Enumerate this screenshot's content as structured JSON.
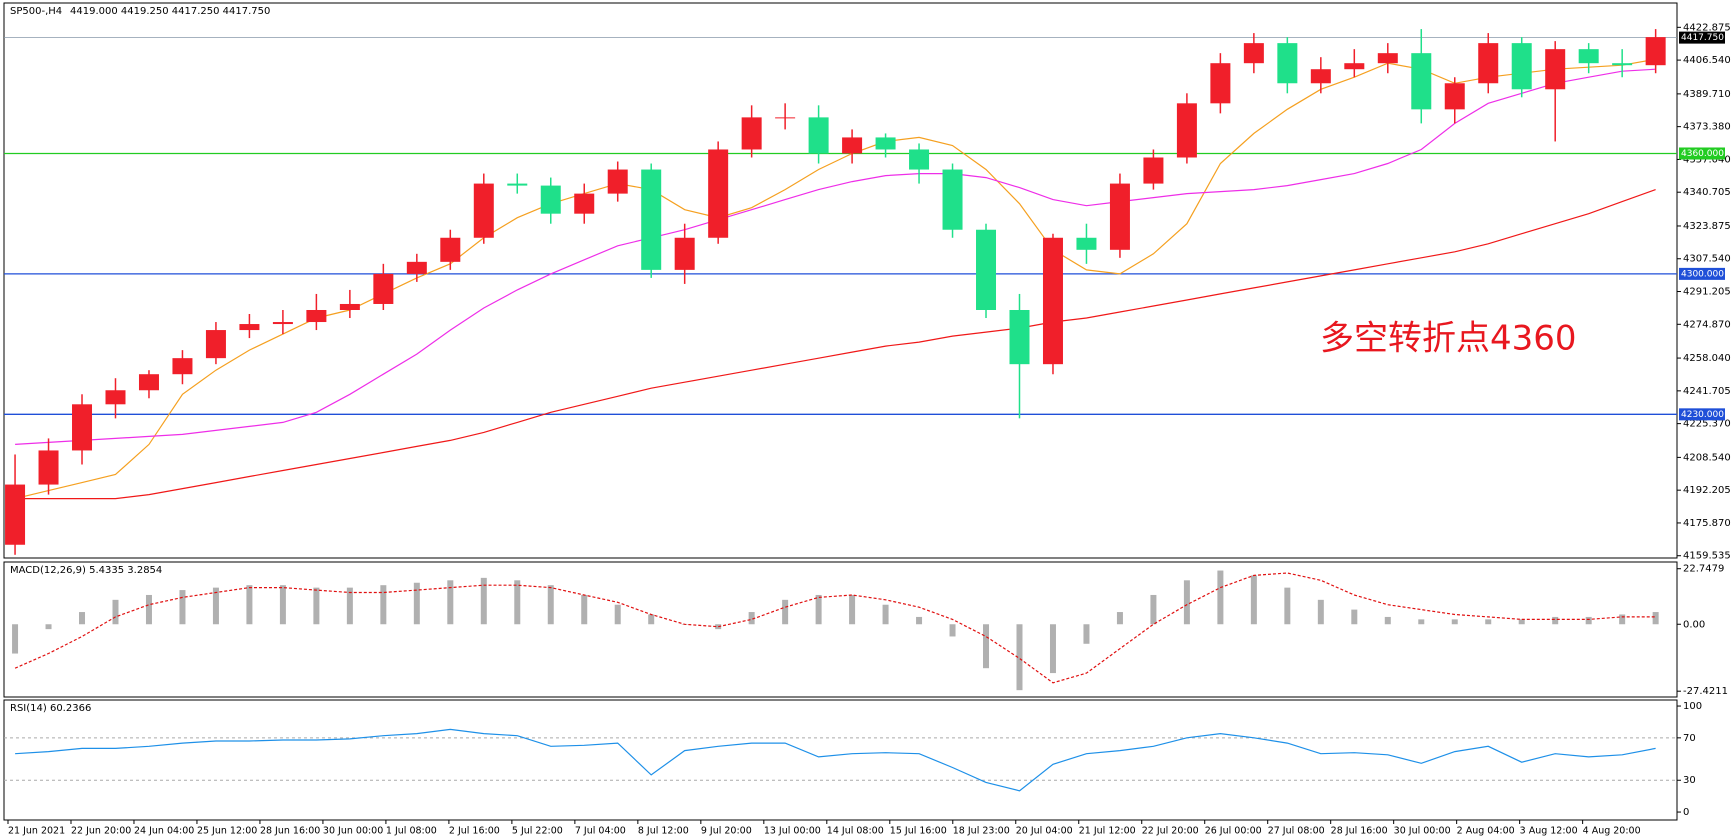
{
  "chart_data": [
    {
      "type": "candlestick",
      "title": "SP500-,H4",
      "subtitle": "4419.000 4419.250 4417.250 4417.750",
      "up_color": "#f01f2a",
      "down_color": "#1fe08a",
      "open": [
        4165,
        4195,
        4212,
        4235,
        4242,
        4250,
        4258,
        4272,
        4275,
        4276,
        4282,
        4285,
        4300,
        4306,
        4318,
        4345,
        4344,
        4330,
        4340,
        4352,
        4302,
        4318,
        4362,
        4378,
        4378,
        4360,
        4368,
        4362,
        4352,
        4322,
        4282,
        4255,
        4318,
        4312,
        4345,
        4358,
        4385,
        4405,
        4415,
        4395,
        4402,
        4405,
        4410,
        4382,
        4395,
        4415,
        4392,
        4412,
        4405,
        4404
      ],
      "high": [
        4210,
        4218,
        4240,
        4248,
        4252,
        4262,
        4276,
        4280,
        4282,
        4290,
        4292,
        4305,
        4310,
        4322,
        4350,
        4350,
        4348,
        4345,
        4356,
        4355,
        4325,
        4366,
        4384,
        4385,
        4384,
        4372,
        4370,
        4365,
        4355,
        4325,
        4290,
        4320,
        4325,
        4350,
        4362,
        4390,
        4410,
        4420,
        4418,
        4408,
        4412,
        4415,
        4422,
        4398,
        4420,
        4418,
        4416,
        4415,
        4412,
        4422
      ],
      "low": [
        4160,
        4190,
        4205,
        4228,
        4238,
        4245,
        4255,
        4268,
        4270,
        4272,
        4278,
        4282,
        4296,
        4302,
        4315,
        4340,
        4325,
        4325,
        4336,
        4298,
        4295,
        4315,
        4358,
        4372,
        4355,
        4355,
        4358,
        4345,
        4318,
        4278,
        4228,
        4250,
        4305,
        4308,
        4342,
        4355,
        4380,
        4400,
        4390,
        4390,
        4398,
        4400,
        4375,
        4375,
        4390,
        4388,
        4366,
        4400,
        4398,
        4400
      ],
      "close": [
        4195,
        4212,
        4235,
        4242,
        4250,
        4258,
        4272,
        4275,
        4276,
        4282,
        4285,
        4300,
        4306,
        4318,
        4345,
        4344,
        4330,
        4340,
        4352,
        4302,
        4318,
        4362,
        4378,
        4378,
        4360,
        4368,
        4362,
        4352,
        4322,
        4282,
        4255,
        4318,
        4312,
        4345,
        4358,
        4385,
        4405,
        4415,
        4395,
        4402,
        4405,
        4410,
        4382,
        4395,
        4415,
        4392,
        4412,
        4405,
        4404,
        4418
      ],
      "lines": [
        {
          "color": "#f5a020",
          "values": [
            4188,
            4192,
            4196,
            4200,
            4215,
            4240,
            4252,
            4262,
            4270,
            4278,
            4282,
            4290,
            4298,
            4305,
            4318,
            4328,
            4335,
            4340,
            4345,
            4342,
            4332,
            4328,
            4333,
            4342,
            4352,
            4360,
            4366,
            4368,
            4364,
            4352,
            4335,
            4312,
            4302,
            4300,
            4310,
            4325,
            4355,
            4370,
            4382,
            4392,
            4398,
            4405,
            4402,
            4395,
            4398,
            4400,
            4402,
            4403,
            4404,
            4407
          ]
        },
        {
          "color": "#ee2ee8",
          "values": [
            4215,
            4216,
            4217,
            4218,
            4219,
            4220,
            4222,
            4224,
            4226,
            4231,
            4240,
            4250,
            4260,
            4272,
            4283,
            4292,
            4300,
            4307,
            4314,
            4318,
            4322,
            4327,
            4332,
            4337,
            4342,
            4346,
            4349,
            4350,
            4350,
            4348,
            4343,
            4337,
            4334,
            4336,
            4338,
            4340,
            4341,
            4342,
            4344,
            4347,
            4350,
            4355,
            4362,
            4375,
            4385,
            4390,
            4395,
            4398,
            4401,
            4402
          ]
        },
        {
          "color": "#f01818",
          "values": [
            4188,
            4188,
            4188,
            4188,
            4190,
            4193,
            4196,
            4199,
            4202,
            4205,
            4208,
            4211,
            4214,
            4217,
            4221,
            4226,
            4231,
            4235,
            4239,
            4243,
            4246,
            4249,
            4252,
            4255,
            4258,
            4261,
            4264,
            4266,
            4269,
            4271,
            4273,
            4276,
            4278,
            4281,
            4284,
            4287,
            4290,
            4293,
            4296,
            4299,
            4302,
            4305,
            4308,
            4311,
            4315,
            4320,
            4325,
            4330,
            4336,
            4342
          ]
        }
      ],
      "ylim": [
        4158.4,
        4435
      ],
      "yticks": [
        {
          "value": 4422.875,
          "label": "4422.875"
        },
        {
          "value": 4406.54,
          "label": "4406.540"
        },
        {
          "value": 4389.71,
          "label": "4389.710"
        },
        {
          "value": 4373.38,
          "label": "4373.380"
        },
        {
          "value": 4357.04,
          "label": "4357.040"
        },
        {
          "value": 4340.705,
          "label": "4340.705"
        },
        {
          "value": 4323.875,
          "label": "4323.875"
        },
        {
          "value": 4307.54,
          "label": "4307.540"
        },
        {
          "value": 4291.205,
          "label": "4291.205"
        },
        {
          "value": 4274.87,
          "label": "4274.870"
        },
        {
          "value": 4258.04,
          "label": "4258.040"
        },
        {
          "value": 4241.705,
          "label": "4241.705"
        },
        {
          "value": 4225.37,
          "label": "4225.370"
        },
        {
          "value": 4208.54,
          "label": "4208.540"
        },
        {
          "value": 4192.205,
          "label": "4192.205"
        },
        {
          "value": 4175.87,
          "label": "4175.870"
        },
        {
          "value": 4159.535,
          "label": "4159.535"
        }
      ],
      "hlines": [
        {
          "value": 4360,
          "label": "4360.000",
          "color": "#22cc22"
        },
        {
          "value": 4300,
          "label": "4300.000",
          "color": "#1f4fd8"
        },
        {
          "value": 4230,
          "label": "4230.000",
          "color": "#1f4fd8"
        }
      ],
      "last_price": {
        "value": 4417.75,
        "label": "4417.750",
        "color": "#8899aa"
      },
      "annotation": {
        "text": "多空转折点4360",
        "color": "#e8171f"
      }
    },
    {
      "type": "macd",
      "title": "MACD(12,26,9) 5.4335 3.2854",
      "hist_color": "#b0b0b0",
      "signal_color": "#e01010",
      "histogram": [
        -12,
        -2,
        5,
        10,
        12,
        14,
        15,
        16,
        16,
        15,
        15,
        16,
        17,
        18,
        19,
        18,
        16,
        12,
        8,
        4,
        0,
        -2,
        5,
        10,
        12,
        12,
        8,
        3,
        -5,
        -18,
        -27,
        -20,
        -8,
        5,
        12,
        18,
        22,
        20,
        15,
        10,
        6,
        3,
        2,
        2,
        2,
        2,
        3,
        3,
        4,
        5
      ],
      "signal": [
        -18,
        -12,
        -5,
        3,
        8,
        11,
        13,
        15,
        15,
        14,
        13,
        13,
        14,
        15,
        16,
        16,
        15,
        12,
        9,
        4,
        0,
        -1,
        2,
        7,
        11,
        12,
        10,
        7,
        2,
        -5,
        -14,
        -24,
        -20,
        -10,
        0,
        8,
        15,
        20,
        21,
        18,
        12,
        8,
        6,
        4,
        3,
        2,
        2,
        2,
        3,
        3
      ],
      "ylim": [
        -29.8,
        25.5
      ],
      "yticks": [
        22.7479,
        {
          "value": 0,
          "label": "0.00"
        },
        -27.4211
      ]
    },
    {
      "type": "rsi",
      "title": "RSI(14) 60.2366",
      "color": "#1e90e8",
      "values": [
        55,
        57,
        60,
        60,
        62,
        65,
        67,
        67,
        68,
        68,
        69,
        72,
        74,
        78,
        74,
        72,
        62,
        63,
        65,
        35,
        58,
        62,
        65,
        65,
        52,
        55,
        56,
        55,
        42,
        28,
        20,
        45,
        55,
        58,
        62,
        70,
        74,
        70,
        65,
        55,
        56,
        54,
        46,
        57,
        62,
        47,
        55,
        52,
        54,
        60
      ],
      "ylim": [
        -7.5,
        105.7
      ],
      "yticks": [
        100,
        70,
        30,
        0
      ],
      "levels": [
        70,
        30
      ],
      "xtick_labels": [
        "21 Jun 2021",
        "22 Jun 20:00",
        "24 Jun 04:00",
        "25 Jun 12:00",
        "28 Jun 16:00",
        "30 Jun 00:00",
        "1 Jul 08:00",
        "2 Jul 16:00",
        "5 Jul 22:00",
        "7 Jul 04:00",
        "8 Jul 12:00",
        "9 Jul 20:00",
        "13 Jul 00:00",
        "14 Jul 08:00",
        "15 Jul 16:00",
        "18 Jul 23:00",
        "20 Jul 04:00",
        "21 Jul 12:00",
        "22 Jul 20:00",
        "26 Jul 00:00",
        "27 Jul 08:00",
        "28 Jul 16:00",
        "30 Jul 00:00",
        "2 Aug 04:00",
        "3 Aug 12:00",
        "4 Aug 20:00"
      ]
    }
  ]
}
